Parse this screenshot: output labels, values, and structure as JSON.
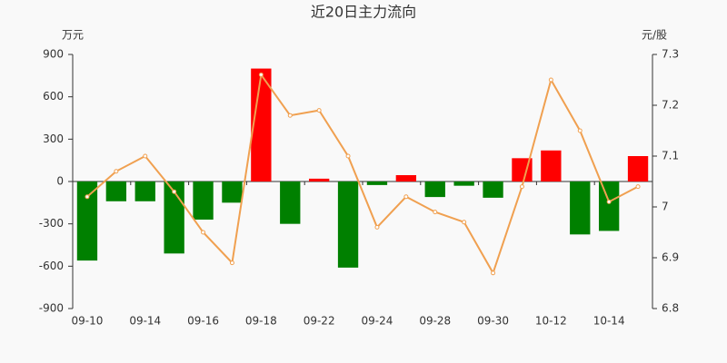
{
  "chart_data": {
    "type": "bar_line",
    "title": "近20日主力流向",
    "y_unit": "万元",
    "y2_unit": "元/股",
    "categories": [
      "09-10",
      null,
      "09-14",
      null,
      "09-16",
      null,
      "09-18",
      null,
      "09-22",
      null,
      "09-24",
      null,
      "09-28",
      null,
      "09-30",
      null,
      "10-12",
      null,
      "10-14",
      null
    ],
    "series": [
      {
        "type": "bar",
        "positive_color": "#ff0000",
        "negative_color": "#008000",
        "values": [
          -560,
          -140,
          -140,
          -510,
          -270,
          -150,
          800,
          -300,
          20,
          -610,
          -25,
          45,
          -110,
          -30,
          -115,
          165,
          220,
          -375,
          -350,
          180
        ]
      },
      {
        "type": "line",
        "axis": "y2",
        "color": "#f0a050",
        "values": [
          7.02,
          7.07,
          7.1,
          7.03,
          6.95,
          6.89,
          7.26,
          7.18,
          7.19,
          7.1,
          6.96,
          7.02,
          6.99,
          6.97,
          6.87,
          7.04,
          7.25,
          7.15,
          7.01,
          7.04
        ]
      }
    ],
    "ylim": [
      -900,
      900
    ],
    "yticks": [
      -900,
      -600,
      -300,
      0,
      300,
      600,
      900
    ],
    "y2lim": [
      6.8,
      7.3
    ],
    "y2ticks": [
      6.8,
      6.9,
      7,
      7.1,
      7.2,
      7.3
    ]
  }
}
